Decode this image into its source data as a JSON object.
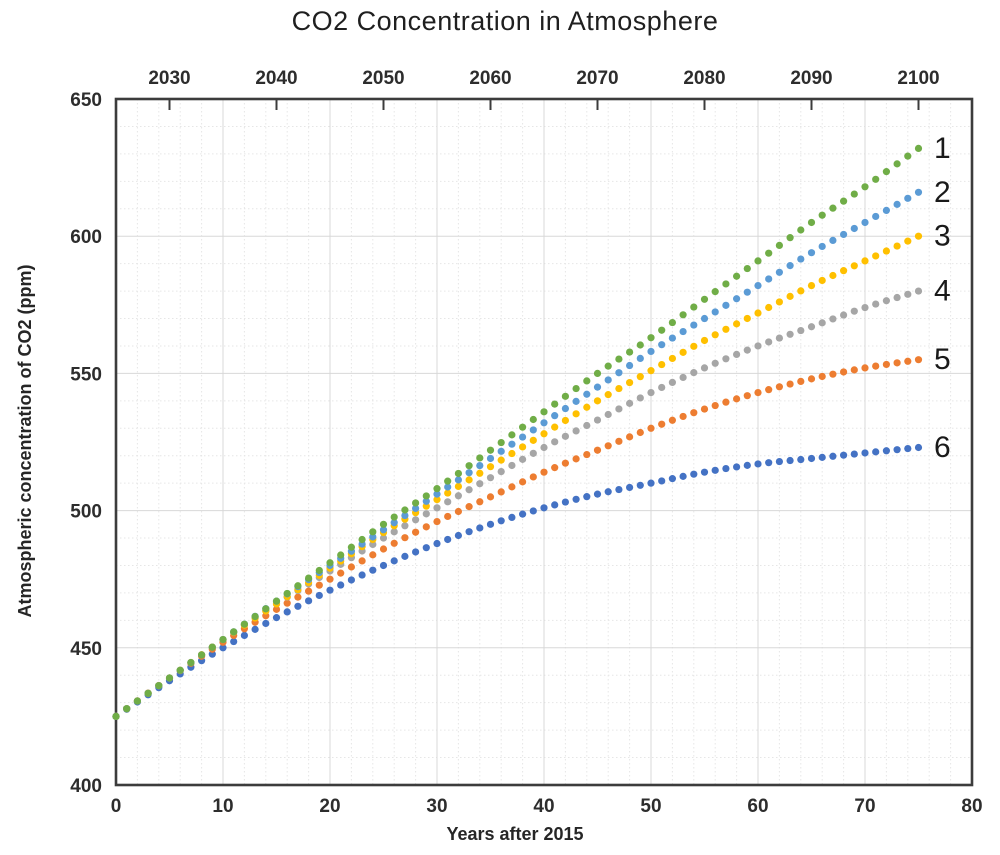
{
  "page": {
    "background": "#ffffff"
  },
  "chart_data": {
    "type": "scatter",
    "title": "CO2 Concentration in Atmosphere",
    "xlabel": "Years after 2015",
    "ylabel": "Atmospheric concentration of CO2 (ppm)",
    "x_axis_bottom": {
      "min": 0,
      "max": 80,
      "ticks": [
        0,
        10,
        20,
        30,
        40,
        50,
        60,
        70,
        80
      ]
    },
    "x_axis_top": {
      "ticks": [
        2030,
        2040,
        2050,
        2060,
        2070,
        2080,
        2090,
        2100
      ],
      "start_year_at_x0": 2025
    },
    "y_axis": {
      "min": 400,
      "max": 650,
      "ticks": [
        400,
        450,
        500,
        550,
        600,
        650
      ]
    },
    "grid": {
      "major_x_step": 10,
      "minor_x_step": 2,
      "major_y_step": 50,
      "minor_y_step": 10,
      "grid_on": true
    },
    "legend_position": "right-end-of-series",
    "point_step_years": 1,
    "knot_years": [
      0,
      5,
      10,
      15,
      20,
      25,
      30,
      35,
      40,
      45,
      50,
      55,
      60,
      65,
      70,
      75
    ],
    "series": [
      {
        "label": "1",
        "color": "#70AD47",
        "end_value": 632,
        "values": [
          425,
          439,
          453,
          467,
          481,
          495,
          508,
          522,
          536,
          550,
          563,
          577,
          591,
          605,
          618,
          632
        ]
      },
      {
        "label": "2",
        "color": "#5B9BD5",
        "end_value": 616,
        "values": [
          425,
          439,
          453,
          467,
          480,
          493,
          506,
          519,
          532,
          545,
          558,
          570,
          582,
          594,
          605,
          616
        ]
      },
      {
        "label": "3",
        "color": "#FFC000",
        "end_value": 600,
        "values": [
          425,
          439,
          453,
          466,
          479,
          492,
          504,
          516,
          528,
          540,
          551,
          562,
          572,
          582,
          591,
          600
        ]
      },
      {
        "label": "4",
        "color": "#A6A6A6",
        "end_value": 580,
        "values": [
          425,
          439,
          453,
          466,
          478,
          490,
          501,
          512,
          523,
          533,
          543,
          552,
          560,
          567,
          574,
          580
        ]
      },
      {
        "label": "5",
        "color": "#ED7D31",
        "end_value": 555,
        "values": [
          425,
          439,
          452,
          464,
          475,
          486,
          496,
          505,
          514,
          522,
          530,
          537,
          543,
          548,
          552,
          555
        ]
      },
      {
        "label": "6",
        "color": "#4472C4",
        "end_value": 523,
        "values": [
          425,
          438,
          450,
          461,
          471,
          480,
          488,
          495,
          501,
          506,
          510,
          514,
          517,
          519,
          521,
          523
        ]
      }
    ],
    "styles": {
      "axis_color": "#3c3c3c",
      "major_grid_color": "#d8d8d8",
      "minor_grid_color": "#e6e6e6",
      "tick_label_color": "#2d2d2d",
      "series_label_color": "#1a1a1a"
    }
  }
}
